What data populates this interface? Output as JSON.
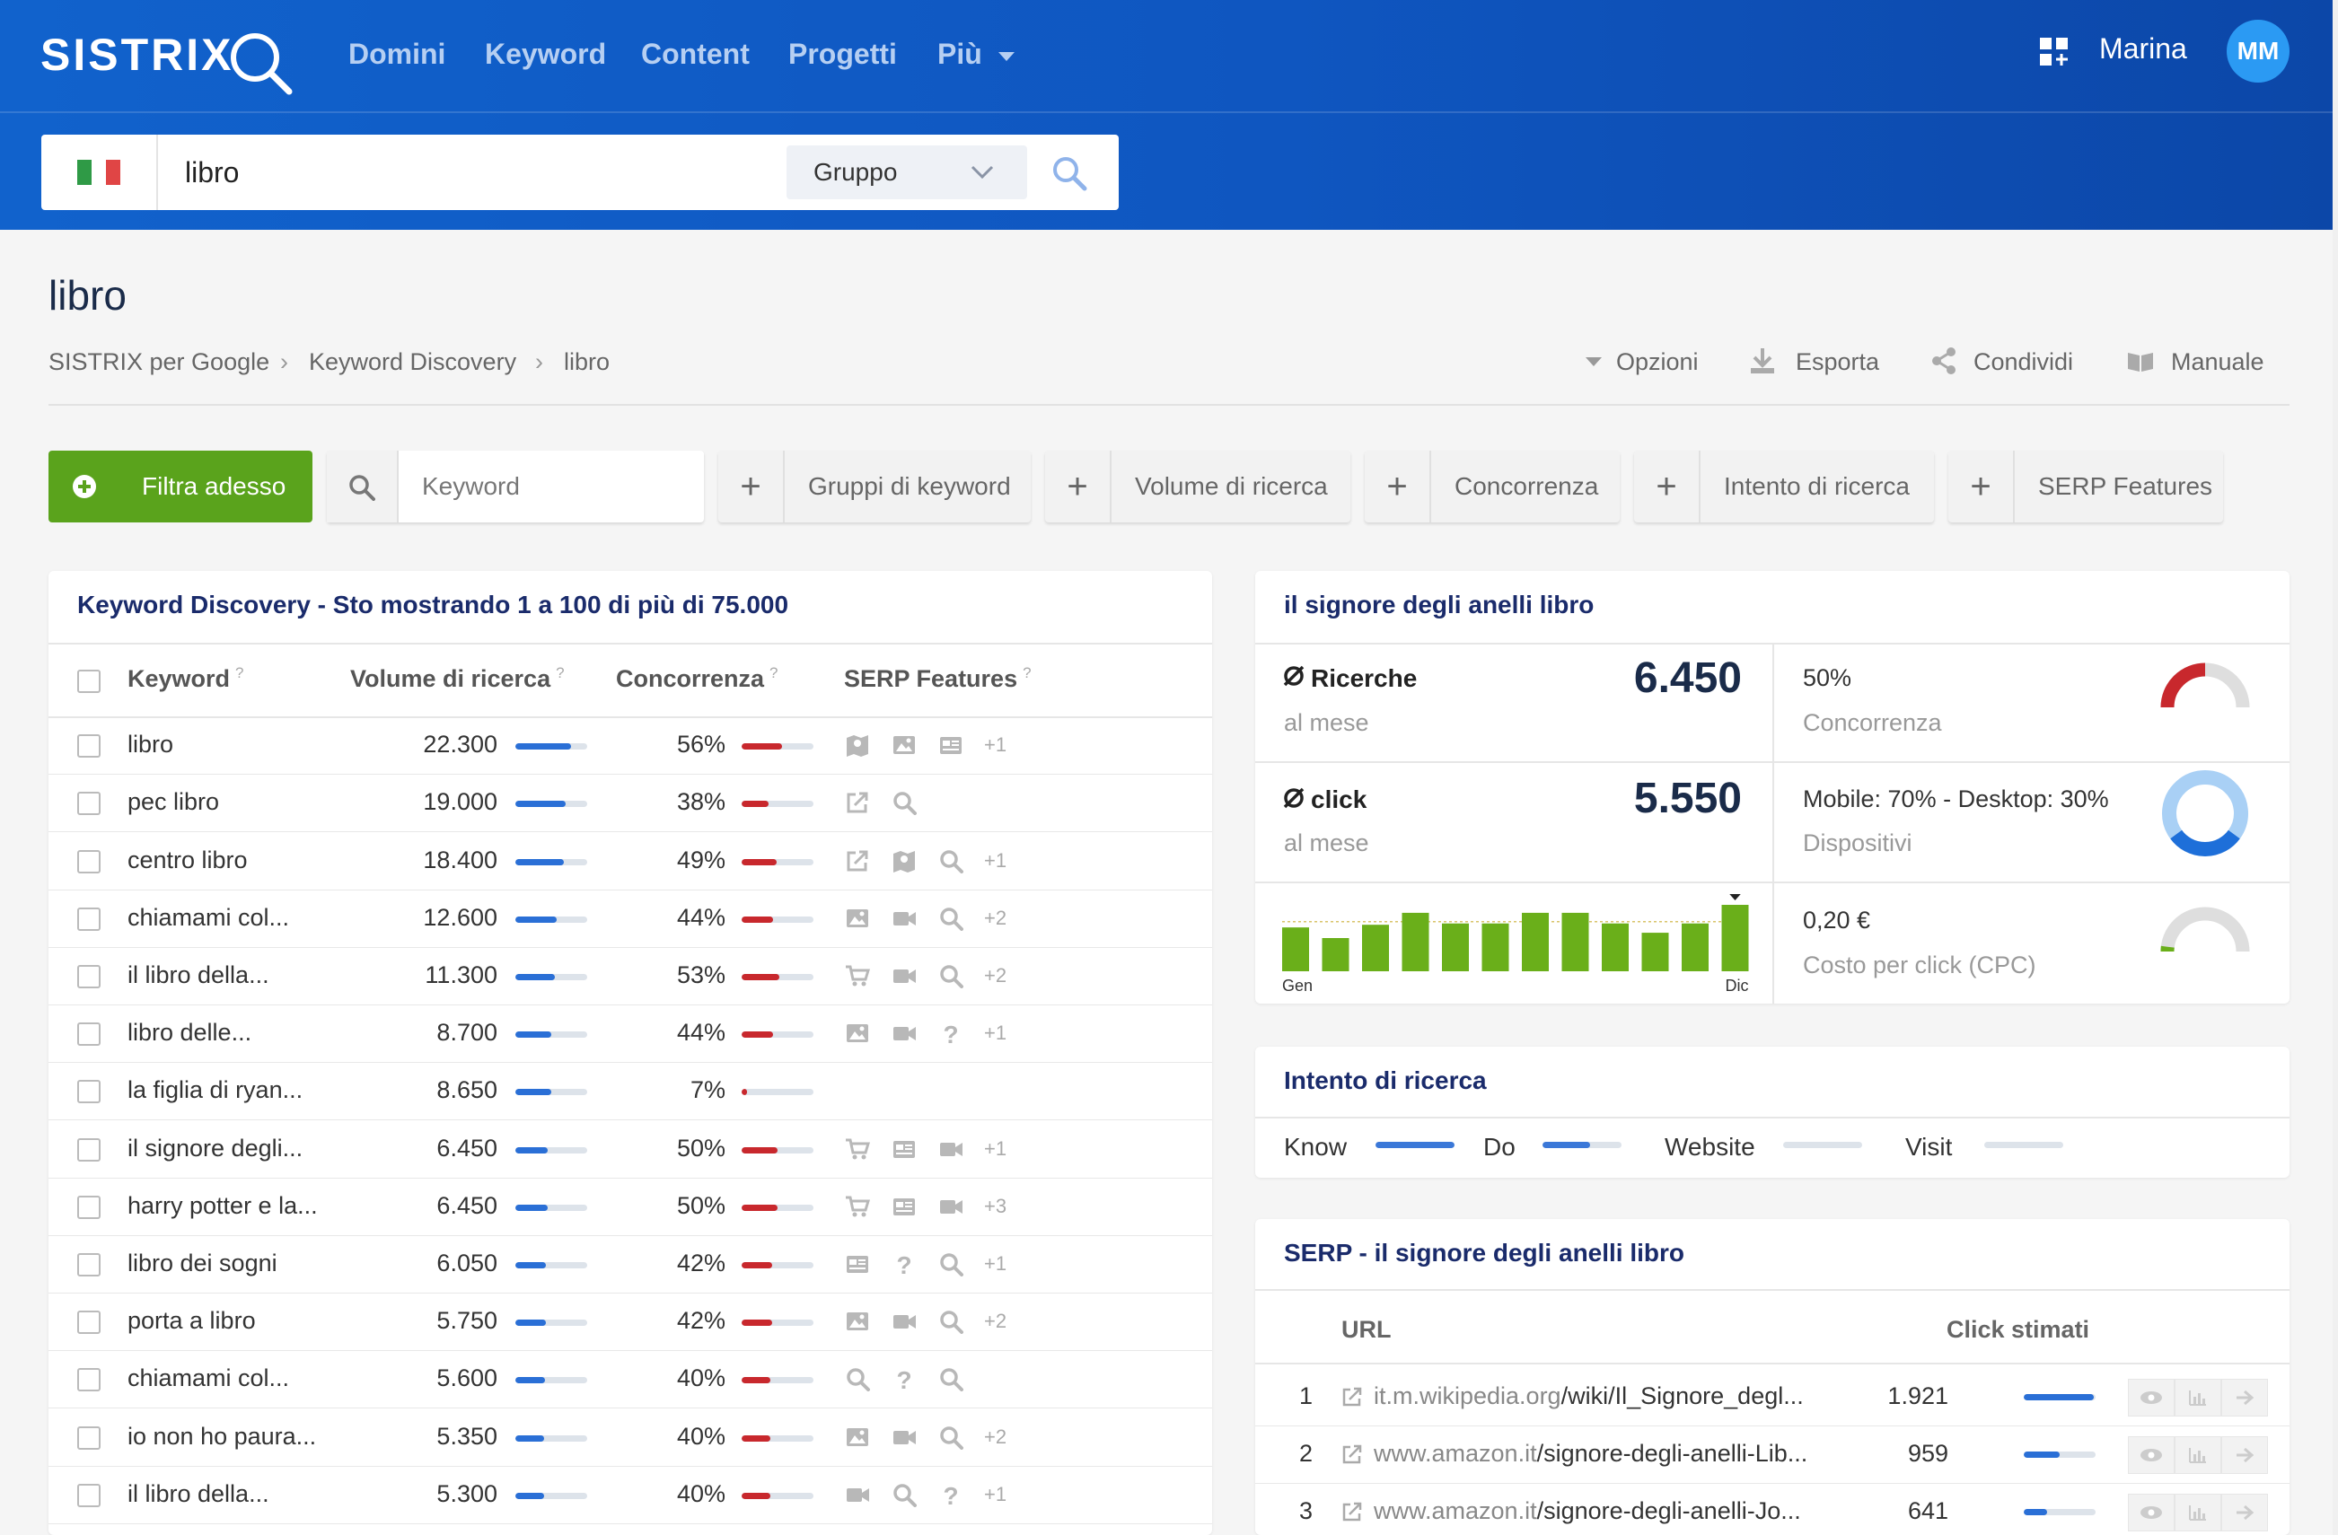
{
  "header": {
    "logo": "SISTRIX",
    "nav": [
      "Domini",
      "Keyword",
      "Content",
      "Progetti",
      "Più"
    ],
    "user_name": "Marina",
    "user_initials": "MM",
    "search": {
      "value": "libro",
      "group_label": "Gruppo"
    }
  },
  "page": {
    "title": "libro",
    "breadcrumb": [
      "SISTRIX per Google",
      "Keyword Discovery",
      "libro"
    ],
    "actions": [
      "Opzioni",
      "Esporta",
      "Condividi",
      "Manuale"
    ]
  },
  "filters": {
    "filter_now": "Filtra adesso",
    "keyword_placeholder": "Keyword",
    "chips": [
      "Gruppi di keyword",
      "Volume di ricerca",
      "Concorrenza",
      "Intento di ricerca",
      "SERP Features"
    ]
  },
  "keyword_table": {
    "title": "Keyword Discovery - Sto mostrando 1 a 100 di più di 75.000",
    "columns": [
      "Keyword",
      "Volume di ricerca",
      "Concorrenza",
      "SERP Features"
    ],
    "help_mark": "?",
    "rows": [
      {
        "keyword": "libro",
        "volume": "22.300",
        "vol_fraction": 0.78,
        "competition": "56%",
        "comp_fraction": 0.56,
        "serp": [
          "map-icon",
          "image-icon",
          "news-icon"
        ],
        "more": "+1"
      },
      {
        "keyword": "pec libro",
        "volume": "19.000",
        "vol_fraction": 0.7,
        "competition": "38%",
        "comp_fraction": 0.38,
        "serp": [
          "external-link-icon",
          "search-icon"
        ],
        "more": ""
      },
      {
        "keyword": "centro libro",
        "volume": "18.400",
        "vol_fraction": 0.68,
        "competition": "49%",
        "comp_fraction": 0.49,
        "serp": [
          "external-link-icon",
          "map-icon",
          "search-icon"
        ],
        "more": "+1"
      },
      {
        "keyword": "chiamami col...",
        "volume": "12.600",
        "vol_fraction": 0.58,
        "competition": "44%",
        "comp_fraction": 0.44,
        "serp": [
          "image-icon",
          "video-icon",
          "search-icon"
        ],
        "more": "+2"
      },
      {
        "keyword": "il libro della...",
        "volume": "11.300",
        "vol_fraction": 0.55,
        "competition": "53%",
        "comp_fraction": 0.53,
        "serp": [
          "cart-icon",
          "video-icon",
          "search-icon"
        ],
        "more": "+2"
      },
      {
        "keyword": "libro delle...",
        "volume": "8.700",
        "vol_fraction": 0.5,
        "competition": "44%",
        "comp_fraction": 0.44,
        "serp": [
          "image-icon",
          "video-icon",
          "question-icon"
        ],
        "more": "+1"
      },
      {
        "keyword": "la figlia di ryan...",
        "volume": "8.650",
        "vol_fraction": 0.5,
        "competition": "7%",
        "comp_fraction": 0.07,
        "serp": [],
        "more": ""
      },
      {
        "keyword": "il signore degli...",
        "volume": "6.450",
        "vol_fraction": 0.45,
        "competition": "50%",
        "comp_fraction": 0.5,
        "serp": [
          "cart-icon",
          "news-icon",
          "video-icon"
        ],
        "more": "+1"
      },
      {
        "keyword": "harry potter e la...",
        "volume": "6.450",
        "vol_fraction": 0.45,
        "competition": "50%",
        "comp_fraction": 0.5,
        "serp": [
          "cart-icon",
          "news-icon",
          "video-icon"
        ],
        "more": "+3"
      },
      {
        "keyword": "libro dei sogni",
        "volume": "6.050",
        "vol_fraction": 0.43,
        "competition": "42%",
        "comp_fraction": 0.42,
        "serp": [
          "news-icon",
          "question-icon",
          "search-icon"
        ],
        "more": "+1"
      },
      {
        "keyword": "porta a libro",
        "volume": "5.750",
        "vol_fraction": 0.42,
        "competition": "42%",
        "comp_fraction": 0.42,
        "serp": [
          "image-icon",
          "video-icon",
          "search-icon"
        ],
        "more": "+2"
      },
      {
        "keyword": "chiamami col...",
        "volume": "5.600",
        "vol_fraction": 0.41,
        "competition": "40%",
        "comp_fraction": 0.4,
        "serp": [
          "search-icon",
          "question-icon",
          "search-icon"
        ],
        "more": ""
      },
      {
        "keyword": "io non ho paura...",
        "volume": "5.350",
        "vol_fraction": 0.4,
        "competition": "40%",
        "comp_fraction": 0.4,
        "serp": [
          "image-icon",
          "video-icon",
          "search-icon"
        ],
        "more": "+2"
      },
      {
        "keyword": "il libro della...",
        "volume": "5.300",
        "vol_fraction": 0.4,
        "competition": "40%",
        "comp_fraction": 0.4,
        "serp": [
          "video-icon",
          "search-icon",
          "question-icon"
        ],
        "more": "+1"
      }
    ]
  },
  "detail": {
    "title": "il signore degli anelli libro",
    "searches_label": "Ricerche",
    "searches_value": "6.450",
    "clicks_label": "click",
    "clicks_value": "5.550",
    "per_month": "al mese",
    "competition_value": "50%",
    "competition_label": "Concorrenza",
    "competition_fraction": 0.5,
    "devices_value": "Mobile: 70% - Desktop: 30%",
    "devices_label": "Dispositivi",
    "mobile_fraction": 0.7,
    "cpc_value": "0,20 €",
    "cpc_label": "Costo per click (CPC)",
    "cpc_fraction": 0.04,
    "trend_start": "Gen",
    "trend_end": "Dic",
    "trend": [
      0.66,
      0.5,
      0.7,
      0.88,
      0.72,
      0.72,
      0.88,
      0.88,
      0.72,
      0.58,
      0.72,
      1.0
    ],
    "colors": {
      "accent": "#1a2b6b",
      "bar": "#6aaf1a",
      "competition": "#c8282d",
      "mobile": "#a9d0f5",
      "desktop": "#1e6fd9"
    }
  },
  "intent": {
    "title": "Intento di ricerca",
    "items": [
      {
        "label": "Know",
        "fraction": 1.0
      },
      {
        "label": "Do",
        "fraction": 0.6
      },
      {
        "label": "Website",
        "fraction": 0.0
      },
      {
        "label": "Visit",
        "fraction": 0.0
      }
    ]
  },
  "serp": {
    "title": "SERP - il signore degli anelli libro",
    "col_url": "URL",
    "col_clicks": "Click stimati",
    "rows": [
      {
        "pos": "1",
        "domain": "it.m.wikipedia.org",
        "path": "/wiki/Il_Signore_degl...",
        "clicks": "1.921",
        "fraction": 0.98
      },
      {
        "pos": "2",
        "domain": "www.amazon.it",
        "path": "/signore-degli-anelli-Lib...",
        "clicks": "959",
        "fraction": 0.5
      },
      {
        "pos": "3",
        "domain": "www.amazon.it",
        "path": "/signore-degli-anelli-Jo...",
        "clicks": "641",
        "fraction": 0.33
      }
    ]
  }
}
